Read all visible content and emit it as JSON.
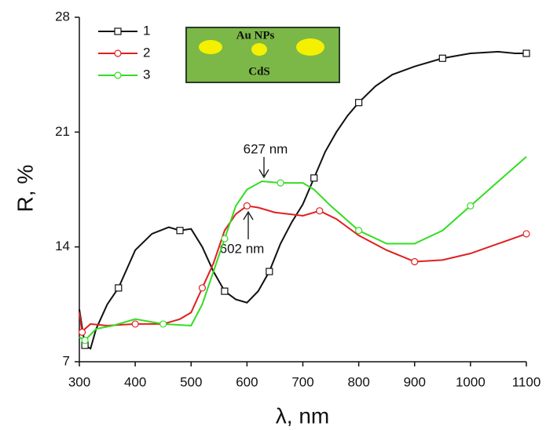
{
  "chart_data": {
    "type": "line",
    "x_label": "λ, nm",
    "y_label": "R, %",
    "xlim": [
      300,
      1100
    ],
    "xticks": [
      300,
      400,
      500,
      600,
      700,
      800,
      900,
      1000,
      1100
    ],
    "ylim": [
      7,
      28
    ],
    "yticks": [
      7,
      14,
      21,
      28
    ],
    "legend": "top-left",
    "annotations": [
      "627 nm",
      "602 nm"
    ],
    "inset": {
      "labels": [
        "Au NPs",
        "CdS"
      ]
    },
    "series": [
      {
        "name": "1",
        "color": "#111111",
        "marker": "square",
        "x": [
          300,
          310,
          320,
          330,
          350,
          370,
          400,
          430,
          460,
          480,
          500,
          520,
          540,
          560,
          580,
          600,
          620,
          640,
          660,
          680,
          700,
          720,
          740,
          760,
          780,
          800,
          830,
          860,
          900,
          950,
          1000,
          1050,
          1080,
          1100
        ],
        "values": [
          10.2,
          8.0,
          7.8,
          9.0,
          10.5,
          11.5,
          13.8,
          14.8,
          15.2,
          15.0,
          15.1,
          14.0,
          12.5,
          11.3,
          10.8,
          10.6,
          11.3,
          12.5,
          14.2,
          15.5,
          16.6,
          18.2,
          19.8,
          21.0,
          22.0,
          22.8,
          23.8,
          24.5,
          25.0,
          25.5,
          25.8,
          25.9,
          25.8,
          25.8
        ]
      },
      {
        "name": "2",
        "color": "#e02020",
        "marker": "circle",
        "x": [
          300,
          305,
          310,
          320,
          350,
          400,
          450,
          480,
          500,
          520,
          540,
          560,
          580,
          600,
          620,
          650,
          700,
          730,
          760,
          800,
          850,
          900,
          950,
          1000,
          1050,
          1100
        ],
        "values": [
          10.0,
          8.8,
          9.0,
          9.3,
          9.2,
          9.3,
          9.3,
          9.6,
          10.0,
          11.5,
          13.0,
          15.0,
          16.0,
          16.5,
          16.4,
          16.1,
          15.9,
          16.2,
          15.7,
          14.7,
          13.8,
          13.1,
          13.2,
          13.6,
          14.2,
          14.8
        ]
      },
      {
        "name": "3",
        "color": "#33dd22",
        "marker": "circle",
        "x": [
          300,
          310,
          330,
          360,
          400,
          450,
          500,
          520,
          540,
          560,
          580,
          600,
          627,
          660,
          700,
          720,
          750,
          800,
          850,
          900,
          950,
          1000,
          1050,
          1100
        ],
        "values": [
          8.5,
          8.3,
          9.0,
          9.2,
          9.6,
          9.3,
          9.2,
          10.5,
          12.5,
          14.5,
          16.5,
          17.5,
          18.0,
          17.9,
          17.9,
          17.5,
          16.5,
          15.0,
          14.2,
          14.2,
          15.0,
          16.5,
          18.0,
          19.5
        ]
      }
    ]
  }
}
